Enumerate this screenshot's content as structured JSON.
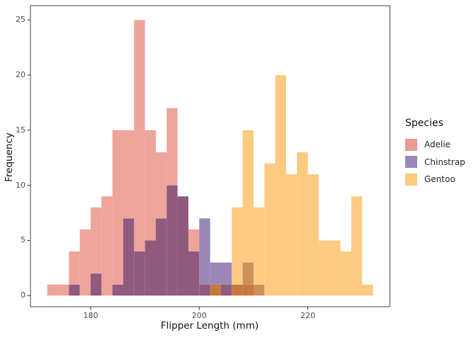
{
  "axes": {
    "x": {
      "label": "Flipper Length (mm)",
      "ticks": [
        180,
        200,
        220
      ]
    },
    "y": {
      "label": "Frequency",
      "ticks": [
        0,
        5,
        10,
        15,
        20,
        25
      ]
    }
  },
  "legend": {
    "title": "Species",
    "items": [
      {
        "label": "Adelie",
        "color": "#e89a93"
      },
      {
        "label": "Chinstrap",
        "color": "#9a86b8"
      },
      {
        "label": "Gentoo",
        "color": "#fdc87f"
      }
    ]
  },
  "chart_data": {
    "type": "bar",
    "subtype": "overlaid-histogram",
    "xlabel": "Flipper Length (mm)",
    "ylabel": "Frequency",
    "bin_start": 172,
    "bin_width": 2,
    "xlim": [
      168.9,
      235.2
    ],
    "ylim": [
      0,
      26.3
    ],
    "grid": false,
    "legend_position": "right",
    "series": [
      {
        "name": "Adelie",
        "counts": [
          1,
          1,
          4,
          6,
          8,
          9,
          15,
          15,
          25,
          15,
          13,
          17,
          9,
          6,
          1,
          1,
          1,
          1,
          1,
          0,
          0,
          0,
          0,
          0,
          0,
          0,
          0,
          0,
          0,
          0
        ]
      },
      {
        "name": "Chinstrap",
        "counts": [
          0,
          0,
          1,
          0,
          2,
          0,
          1,
          7,
          4,
          5,
          7,
          10,
          9,
          4,
          7,
          3,
          3,
          1,
          3,
          1,
          0,
          0,
          0,
          0,
          0,
          0,
          0,
          0,
          0,
          0
        ]
      },
      {
        "name": "Gentoo",
        "counts": [
          0,
          0,
          0,
          0,
          0,
          0,
          0,
          0,
          0,
          0,
          0,
          0,
          0,
          0,
          0,
          1,
          0,
          8,
          15,
          8,
          12,
          20,
          11,
          13,
          11,
          5,
          5,
          4,
          9,
          1
        ]
      }
    ],
    "colors": {
      "adelie": "#eda49a",
      "chinstrap": "#9a87b8",
      "gentoo": "#fdca81",
      "chinstrap_over_adelie": "#905a7e",
      "gentoo_over_chinstrap": "#cc9058",
      "gentoo_over_chinstrap_adelie": "#c7783f",
      "gentoo_over_adelie": "#f2a26e",
      "axis_line": "#404040",
      "tick_mark": "#333333",
      "tick_label": "#4d4d4d"
    }
  }
}
